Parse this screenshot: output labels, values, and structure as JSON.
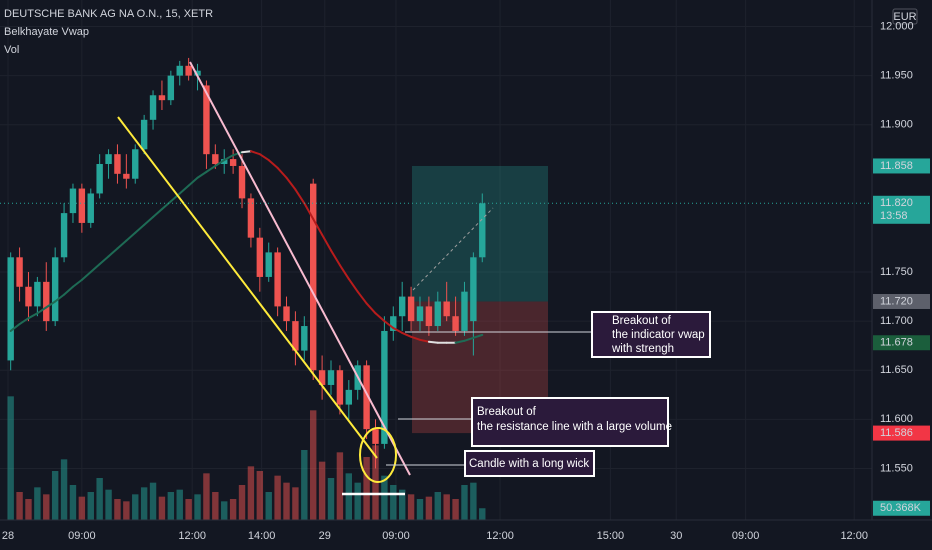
{
  "chart_data": {
    "type": "candlestick",
    "title": "DEUTSCHE BANK AG NA O.N., 15, XETR",
    "indicator": "Belkhayate Vwap",
    "currency": "EUR",
    "up_color": "#26a69a",
    "down_color": "#ef5350",
    "grid": true,
    "xlim": [
      -1.2,
      96.8
    ],
    "xticks": [
      {
        "value": -0.3,
        "label": "28"
      },
      {
        "value": 8,
        "label": "09:00"
      },
      {
        "value": 20.4,
        "label": "12:00"
      },
      {
        "value": 28.2,
        "label": "14:00"
      },
      {
        "value": 35.3,
        "label": "29"
      },
      {
        "value": 43.3,
        "label": "09:00"
      },
      {
        "value": 55,
        "label": "12:00"
      },
      {
        "value": 67.4,
        "label": "15:00"
      },
      {
        "value": 74.8,
        "label": "30"
      },
      {
        "value": 82.6,
        "label": "09:00"
      },
      {
        "value": 94.8,
        "label": "12:00"
      }
    ],
    "ylim": [
      11.4975,
      12.027
    ],
    "yticks": [
      {
        "value": 12.0,
        "label": "12.000"
      },
      {
        "value": 11.95,
        "label": "11.950"
      },
      {
        "value": 11.9,
        "label": "11.900"
      },
      {
        "value": 11.75,
        "label": "11.750"
      },
      {
        "value": 11.7,
        "label": "11.700"
      },
      {
        "value": 11.65,
        "label": "11.650"
      },
      {
        "value": 11.6,
        "label": "11.600"
      },
      {
        "value": 11.55,
        "label": "11.550"
      }
    ],
    "open": [
      11.66,
      11.765,
      11.735,
      11.715,
      11.74,
      11.7,
      11.765,
      11.81,
      11.835,
      11.8,
      11.83,
      11.86,
      11.87,
      11.85,
      11.845,
      11.875,
      11.905,
      11.93,
      11.925,
      11.95,
      11.96,
      11.95,
      11.94,
      11.87,
      11.86,
      11.865,
      11.858,
      11.825,
      11.785,
      11.745,
      11.77,
      11.715,
      11.7,
      11.67,
      11.84,
      11.65,
      11.635,
      11.65,
      11.615,
      11.63,
      11.655,
      11.59,
      11.575,
      11.69,
      11.705,
      11.725,
      11.7,
      11.715,
      11.695,
      11.72,
      11.705,
      11.69,
      11.7,
      11.765
    ],
    "high": [
      11.77,
      11.775,
      11.75,
      11.745,
      11.76,
      11.775,
      11.82,
      11.84,
      11.84,
      11.835,
      11.87,
      11.875,
      11.88,
      11.87,
      11.88,
      11.91,
      11.935,
      11.945,
      11.955,
      11.965,
      11.968,
      11.962,
      11.945,
      11.88,
      11.875,
      11.875,
      11.87,
      11.83,
      11.795,
      11.78,
      11.775,
      11.725,
      11.71,
      11.705,
      11.845,
      11.665,
      11.66,
      11.655,
      11.64,
      11.66,
      11.66,
      11.6,
      11.705,
      11.715,
      11.74,
      11.735,
      11.725,
      11.725,
      11.73,
      11.74,
      11.725,
      11.74,
      11.77,
      11.83
    ],
    "low": [
      11.65,
      11.72,
      11.7,
      11.705,
      11.69,
      11.695,
      11.76,
      11.8,
      11.79,
      11.795,
      11.825,
      11.845,
      11.84,
      11.835,
      11.84,
      11.87,
      11.895,
      11.915,
      11.92,
      11.94,
      11.945,
      11.935,
      11.855,
      11.855,
      11.85,
      11.85,
      11.815,
      11.775,
      11.73,
      11.74,
      11.705,
      11.69,
      11.655,
      11.66,
      11.64,
      11.62,
      11.625,
      11.605,
      11.6,
      11.62,
      11.58,
      11.55,
      11.57,
      11.68,
      11.69,
      11.69,
      11.69,
      11.685,
      11.69,
      11.7,
      11.685,
      11.685,
      11.665,
      11.76
    ],
    "close": [
      11.765,
      11.735,
      11.715,
      11.74,
      11.7,
      11.765,
      11.81,
      11.835,
      11.8,
      11.83,
      11.86,
      11.87,
      11.85,
      11.845,
      11.875,
      11.905,
      11.93,
      11.925,
      11.95,
      11.96,
      11.95,
      11.955,
      11.87,
      11.86,
      11.865,
      11.858,
      11.825,
      11.785,
      11.745,
      11.77,
      11.715,
      11.7,
      11.67,
      11.695,
      11.65,
      11.635,
      11.65,
      11.615,
      11.63,
      11.655,
      11.59,
      11.575,
      11.69,
      11.705,
      11.725,
      11.7,
      11.715,
      11.695,
      11.72,
      11.705,
      11.69,
      11.73,
      11.765,
      11.82
    ],
    "vwap": {
      "values": [
        11.69,
        11.697,
        11.703,
        11.708,
        11.714,
        11.72,
        11.727,
        11.735,
        11.742,
        11.75,
        11.758,
        11.766,
        11.774,
        11.782,
        11.79,
        11.798,
        11.806,
        11.814,
        11.822,
        11.83,
        11.838,
        11.846,
        11.852,
        11.858,
        11.864,
        11.869,
        11.872,
        11.873,
        11.87,
        11.864,
        11.856,
        11.846,
        11.834,
        11.82,
        11.804,
        11.788,
        11.772,
        11.757,
        11.743,
        11.73,
        11.718,
        11.708,
        11.7,
        11.693,
        11.688,
        11.684,
        11.681,
        11.679,
        11.678,
        11.678,
        11.678,
        11.68,
        11.683,
        11.686
      ],
      "up_color": "#1e6b55",
      "down_color": "#b71c1c",
      "flat_color": "#e0e0e0"
    },
    "volume": {
      "name": "Vol",
      "ylim": [
        0,
        600
      ],
      "last_label": "50.368K",
      "values": [
        530,
        120,
        90,
        140,
        110,
        210,
        260,
        150,
        100,
        120,
        180,
        130,
        90,
        80,
        110,
        140,
        160,
        100,
        120,
        130,
        90,
        110,
        200,
        120,
        80,
        90,
        150,
        230,
        210,
        120,
        190,
        160,
        140,
        300,
        470,
        250,
        180,
        290,
        200,
        160,
        270,
        320,
        190,
        150,
        130,
        110,
        90,
        100,
        120,
        110,
        90,
        150,
        160,
        50.368
      ]
    },
    "price_tags": [
      {
        "value": 11.858,
        "label": "11.858",
        "color": "#26a69a"
      },
      {
        "value": 11.82,
        "label": "11.820",
        "color": "#26a69a",
        "countdown": "13:58"
      },
      {
        "value": 11.72,
        "label": "11.720",
        "color": "#5d606b"
      },
      {
        "value": 11.678,
        "label": "11.678",
        "color": "#1b5e3c"
      },
      {
        "value": 11.586,
        "label": "11.586",
        "color": "#f23645"
      }
    ],
    "annotations": [
      {
        "lines": [
          "Breakout of",
          "the indicator vwap",
          "with strengh"
        ]
      },
      {
        "lines": [
          "Breakout of",
          "the resistance line with a large volume"
        ]
      },
      {
        "lines": [
          "Candle with a long wick"
        ]
      }
    ]
  }
}
